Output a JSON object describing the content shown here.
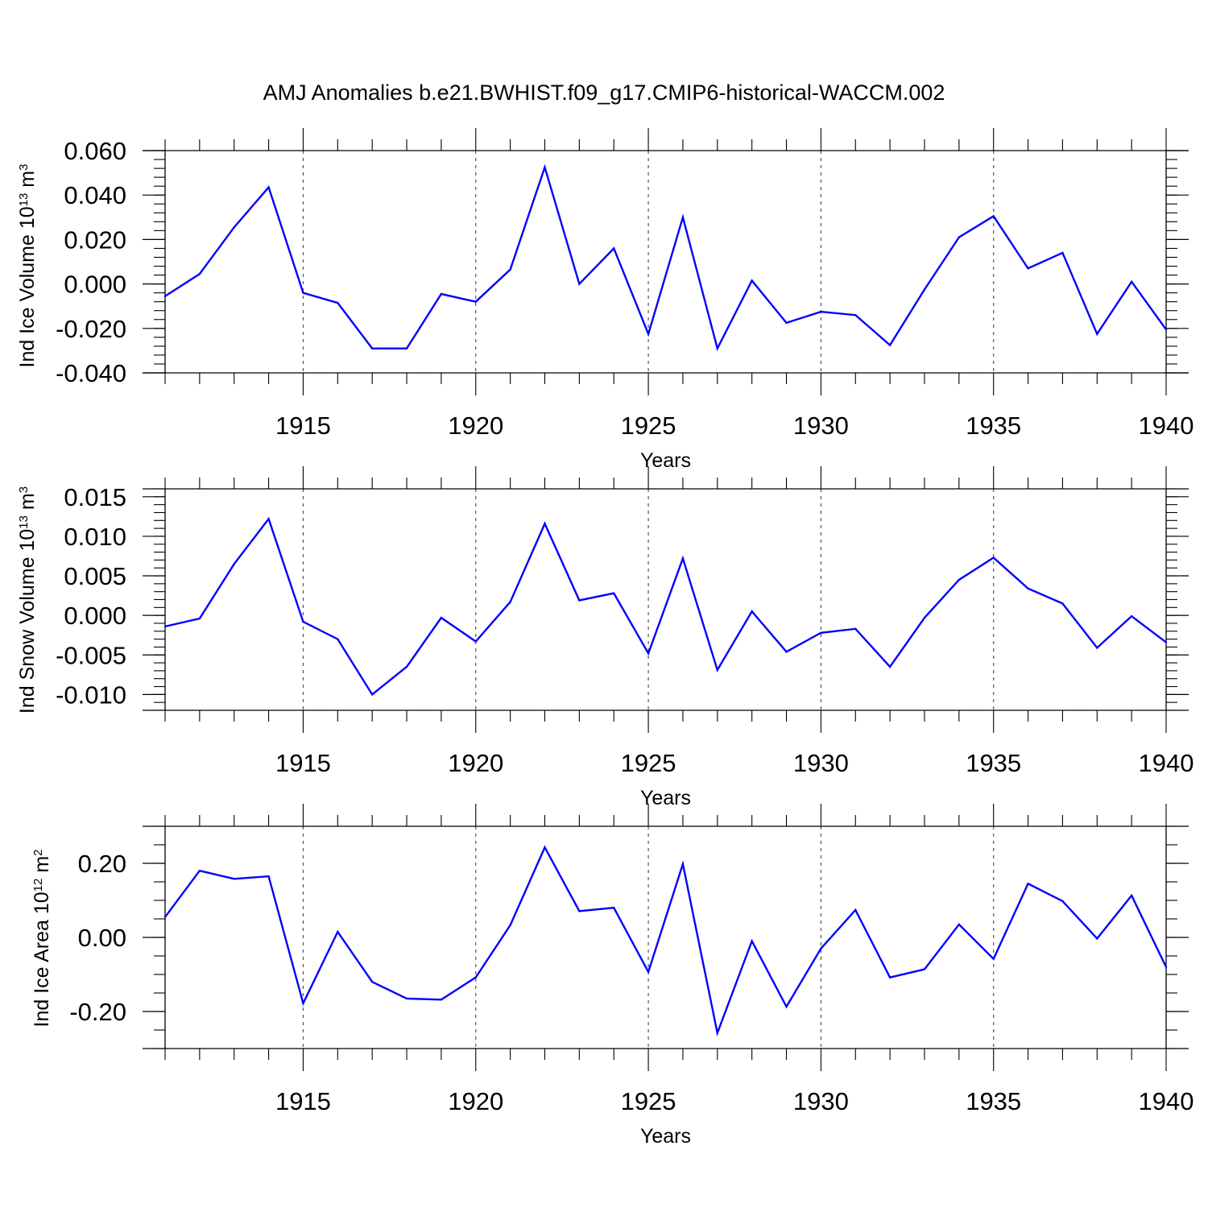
{
  "page_title": "AMJ Anomalies b.e21.BWHIST.f09_g17.CMIP6-historical-WACCM.002",
  "colors": {
    "line": "#0000ff",
    "axis": "#000000",
    "grid": "#555555",
    "background": "#ffffff"
  },
  "chart_data": [
    {
      "type": "line",
      "title": "AMJ Anomalies b.e21.BWHIST.f09_g17.CMIP6-historical-WACCM.002",
      "ylabel_main": "Ind Ice Volume 10",
      "ylabel_exp": "13",
      "ylabel_unit": " m",
      "ylabel_unit_exp": "3",
      "xlabel": "Years",
      "xlim": [
        1911,
        1940
      ],
      "ylim": [
        -0.04,
        0.06
      ],
      "x_ticks": [
        1915,
        1920,
        1925,
        1930,
        1935,
        1940
      ],
      "x_tick_labels": [
        "1915",
        "1920",
        "1925",
        "1930",
        "1935",
        "1940"
      ],
      "y_ticks": [
        -0.04,
        -0.02,
        0.0,
        0.02,
        0.04,
        0.06
      ],
      "y_tick_labels": [
        "-0.040",
        "-0.020",
        "0.000",
        "0.020",
        "0.040",
        "0.060"
      ],
      "y_minor_step": 0.004,
      "grid": "vertical dashed at major x ticks",
      "series": [
        {
          "name": "Ind Ice Volume",
          "x": [
            1911,
            1912,
            1913,
            1914,
            1915,
            1916,
            1917,
            1918,
            1919,
            1920,
            1921,
            1922,
            1923,
            1924,
            1925,
            1926,
            1927,
            1928,
            1929,
            1930,
            1931,
            1932,
            1933,
            1934,
            1935,
            1936,
            1937,
            1938,
            1939,
            1940
          ],
          "values": [
            -0.0055,
            0.0045,
            0.0255,
            0.0435,
            -0.004,
            -0.0085,
            -0.029,
            -0.029,
            -0.0045,
            -0.008,
            0.0065,
            0.0525,
            0.0,
            0.016,
            -0.0225,
            0.03,
            -0.029,
            0.0015,
            -0.0175,
            -0.0125,
            -0.014,
            -0.0275,
            -0.0025,
            0.021,
            0.0305,
            0.007,
            0.014,
            -0.0225,
            0.001,
            -0.0205
          ]
        }
      ]
    },
    {
      "type": "line",
      "ylabel_main": "Ind Snow Volume 10",
      "ylabel_exp": "13",
      "ylabel_unit": " m",
      "ylabel_unit_exp": "3",
      "xlabel": "Years",
      "xlim": [
        1911,
        1940
      ],
      "ylim": [
        -0.012,
        0.016
      ],
      "x_ticks": [
        1915,
        1920,
        1925,
        1930,
        1935,
        1940
      ],
      "x_tick_labels": [
        "1915",
        "1920",
        "1925",
        "1930",
        "1935",
        "1940"
      ],
      "y_ticks": [
        -0.01,
        -0.005,
        0.0,
        0.005,
        0.01,
        0.015
      ],
      "y_tick_labels": [
        "-0.010",
        "-0.005",
        "0.000",
        "0.005",
        "0.010",
        "0.015"
      ],
      "y_minor_step": 0.001,
      "grid": "vertical dashed at major x ticks",
      "series": [
        {
          "name": "Ind Snow Volume",
          "x": [
            1911,
            1912,
            1913,
            1914,
            1915,
            1916,
            1917,
            1918,
            1919,
            1920,
            1921,
            1922,
            1923,
            1924,
            1925,
            1926,
            1927,
            1928,
            1929,
            1930,
            1931,
            1932,
            1933,
            1934,
            1935,
            1936,
            1937,
            1938,
            1939,
            1940
          ],
          "values": [
            -0.0014,
            -0.0004,
            0.0065,
            0.0122,
            -0.0008,
            -0.003,
            -0.01,
            -0.0065,
            -0.0003,
            -0.0033,
            0.0017,
            0.0116,
            0.0019,
            0.0028,
            -0.0048,
            0.0072,
            -0.0069,
            0.0005,
            -0.0046,
            -0.0022,
            -0.0017,
            -0.0065,
            -0.0003,
            0.0045,
            0.0073,
            0.0034,
            0.0015,
            -0.0041,
            -0.0001,
            -0.0034
          ]
        }
      ]
    },
    {
      "type": "line",
      "ylabel_main": "Ind Ice Area 10",
      "ylabel_exp": "12",
      "ylabel_unit": " m",
      "ylabel_unit_exp": "2",
      "xlabel": "Years",
      "xlim": [
        1911,
        1940
      ],
      "ylim": [
        -0.3,
        0.3
      ],
      "x_ticks": [
        1915,
        1920,
        1925,
        1930,
        1935,
        1940
      ],
      "x_tick_labels": [
        "1915",
        "1920",
        "1925",
        "1930",
        "1935",
        "1940"
      ],
      "y_ticks": [
        -0.2,
        0.0,
        0.2
      ],
      "y_tick_labels": [
        "-0.20",
        "0.00",
        "0.20"
      ],
      "y_minor_step": 0.05,
      "grid": "vertical dashed at major x ticks",
      "series": [
        {
          "name": "Ind Ice Area",
          "x": [
            1911,
            1912,
            1913,
            1914,
            1915,
            1916,
            1917,
            1918,
            1919,
            1920,
            1921,
            1922,
            1923,
            1924,
            1925,
            1926,
            1927,
            1928,
            1929,
            1930,
            1931,
            1932,
            1933,
            1934,
            1935,
            1936,
            1937,
            1938,
            1939,
            1940
          ],
          "values": [
            0.055,
            0.18,
            0.158,
            0.165,
            -0.178,
            0.015,
            -0.12,
            -0.165,
            -0.168,
            -0.108,
            0.033,
            0.243,
            0.071,
            0.08,
            -0.093,
            0.198,
            -0.258,
            -0.01,
            -0.187,
            -0.03,
            0.074,
            -0.108,
            -0.086,
            0.035,
            -0.058,
            0.145,
            0.098,
            -0.003,
            0.113,
            -0.08
          ]
        }
      ]
    }
  ]
}
